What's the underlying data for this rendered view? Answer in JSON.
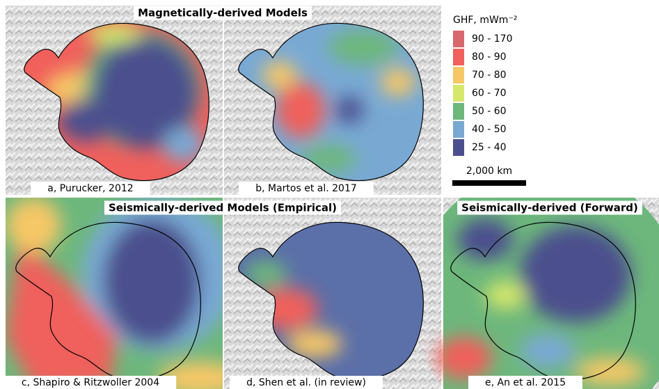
{
  "headers": [
    "Magnetically-derived Models",
    "Seismically-derived Models (Empirical)",
    "Seismically-derived (Forward)"
  ],
  "panels": [
    {
      "caption": "a, Purucker, 2012"
    },
    {
      "caption": "b, Martos et al. 2017"
    },
    {
      "caption": "c, Shapiro & Ritzwoller 2004"
    },
    {
      "caption": "d, Shen et al. (in review)"
    },
    {
      "caption": "e, An et al. 2015"
    }
  ],
  "legend": {
    "title": "GHF, mWm⁻²",
    "items": [
      {
        "label": "90 - 170",
        "color": "#d8676f"
      },
      {
        "label": "80 - 90",
        "color": "#f0605c"
      },
      {
        "label": "70 - 80",
        "color": "#f6c766"
      },
      {
        "label": "60 - 70",
        "color": "#d6e86c"
      },
      {
        "label": "50 - 60",
        "color": "#6db77c"
      },
      {
        "label": "40 - 50",
        "color": "#79a9d3"
      },
      {
        "label": "25 - 40",
        "color": "#4b4f8d"
      }
    ]
  },
  "scale_bar": "2,000 km"
}
